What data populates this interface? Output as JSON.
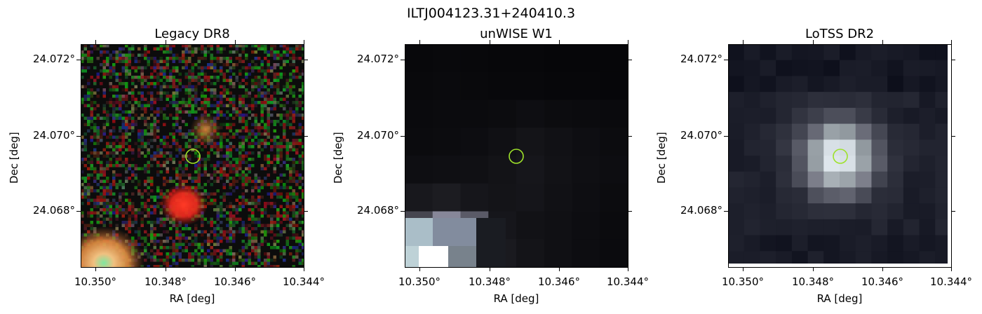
{
  "figure": {
    "title": "ILTJ004123.31+240410.3"
  },
  "panels": [
    {
      "title": "Legacy DR8",
      "xlabel": "RA [deg]",
      "ylabel": "Dec [deg]",
      "xticks": [
        "10.350°",
        "10.348°",
        "10.346°",
        "10.344°"
      ],
      "yticks": [
        "24.072°",
        "24.070°",
        "24.068°"
      ]
    },
    {
      "title": "unWISE W1",
      "xlabel": "RA [deg]",
      "ylabel": "Dec [deg]",
      "xticks": [
        "10.350°",
        "10.348°",
        "10.346°",
        "10.344°"
      ],
      "yticks": [
        "24.072°",
        "24.070°",
        "24.068°"
      ]
    },
    {
      "title": "LoTSS DR2",
      "xlabel": "RA [deg]",
      "ylabel": "Dec [deg]",
      "xticks": [
        "10.350°",
        "10.348°",
        "10.346°",
        "10.344°"
      ],
      "yticks": [
        "24.072°",
        "24.070°",
        "24.068°"
      ]
    }
  ],
  "marker_color": "#9ee22a"
}
